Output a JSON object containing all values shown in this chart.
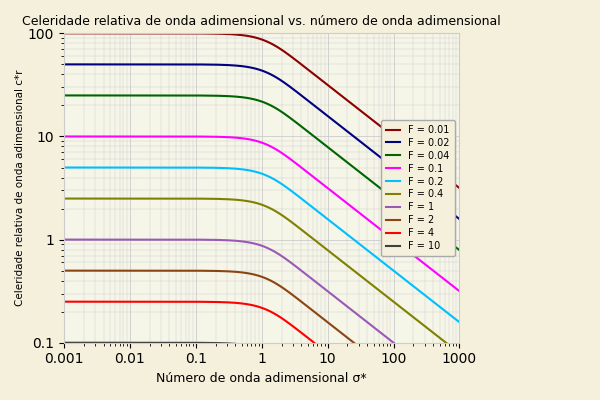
{
  "title": "Celeridade relativa de onda adimensional vs. número de onda adimensional",
  "xlabel": "Número de onda adimensional σ*",
  "ylabel": "Celeridade relativa de onda adimensional c*r",
  "froude_values": [
    0.01,
    0.02,
    0.04,
    0.1,
    0.2,
    0.4,
    1.0,
    2.0,
    4.0,
    10.0
  ],
  "colors": [
    "#8B0000",
    "#000080",
    "#006400",
    "#FF00FF",
    "#00BFFF",
    "#808000",
    "#9B59B6",
    "#8B4513",
    "#FF0000",
    "#404040"
  ],
  "legend_labels": [
    "F = 0.01",
    "F = 0.02",
    "F = 0.04",
    "F = 0.1",
    "F = 0.2",
    "F = 0.4",
    "F = 1",
    "F = 2",
    "F = 4",
    "F = 10"
  ],
  "background_color": "#f5f0dc",
  "plot_bg_color": "#f5f5e8",
  "grid_color": "#cccccc"
}
